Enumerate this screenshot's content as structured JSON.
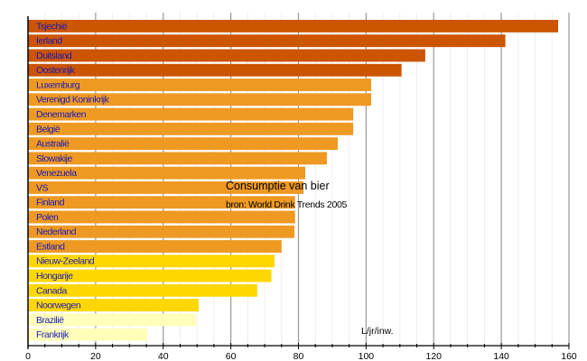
{
  "chart_data": {
    "type": "bar",
    "orientation": "horizontal",
    "title": "Consumptie van bier",
    "subtitle": "bron: World Drink Trends 2005",
    "xlabel": "L/jr/inw.",
    "ylabel": "",
    "xlim": [
      0,
      160
    ],
    "xticks": [
      0,
      20,
      40,
      60,
      80,
      100,
      120,
      140,
      160
    ],
    "grid": true,
    "legend": "none",
    "categories": [
      "Tsjechië",
      "Ierland",
      "Duitsland",
      "Oostenrijk",
      "Luxemburg",
      "Verenigd Koninkrijk",
      "Denemarken",
      "België",
      "Australië",
      "Slowakije",
      "Venezuela",
      "VS",
      "Finland",
      "Polen",
      "Nederland",
      "Estland",
      "Nieuw-Zeeland",
      "Hongarije",
      "Canada",
      "Noorwegen",
      "Brazilië",
      "Frankrijk"
    ],
    "values": [
      156.8,
      141.2,
      117.5,
      110.5,
      101.5,
      101.5,
      96.2,
      96.2,
      91.6,
      88.4,
      82.0,
      81.5,
      79.0,
      79.0,
      78.8,
      75.0,
      72.9,
      72.0,
      67.8,
      50.5,
      49.7,
      35.3
    ],
    "colors": [
      "#cc5500",
      "#cc5500",
      "#cc5500",
      "#cc5500",
      "#ee9922",
      "#ee9922",
      "#ee9922",
      "#ee9922",
      "#ee9922",
      "#ee9922",
      "#ee9922",
      "#ee9922",
      "#ee9922",
      "#ee9922",
      "#ee9922",
      "#ee9922",
      "#ffd700",
      "#ffd700",
      "#ffd700",
      "#ffd700",
      "#ffffbb",
      "#ffffbb"
    ]
  },
  "style": {
    "label_color": "#1a1ab8",
    "major_grid_color": "#999999",
    "minor_grid_color": "#eeeeee",
    "axis_color": "#000000"
  }
}
